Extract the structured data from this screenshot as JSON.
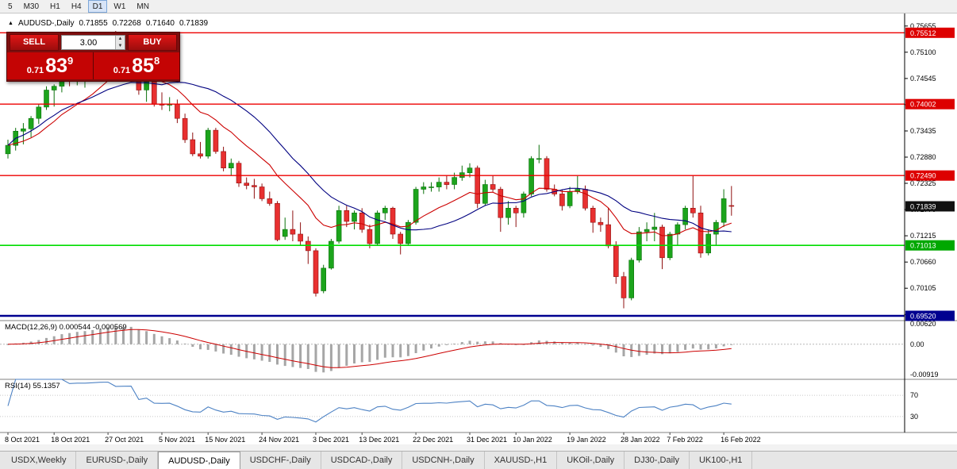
{
  "toolbar": {
    "periods": [
      {
        "label": "5",
        "active": false
      },
      {
        "label": "M30",
        "active": false
      },
      {
        "label": "H1",
        "active": false
      },
      {
        "label": "H4",
        "active": false
      },
      {
        "label": "D1",
        "active": true
      },
      {
        "label": "W1",
        "active": false
      },
      {
        "label": "MN",
        "active": false
      }
    ]
  },
  "chart": {
    "expand_icon": "▲",
    "symbol_label": "AUDUSD-,Daily",
    "open": "0.71855",
    "high": "0.72268",
    "low": "0.71640",
    "close": "0.71839"
  },
  "trade_panel": {
    "sell_label": "SELL",
    "buy_label": "BUY",
    "lot_value": "3.00",
    "spin_up_icon": "▲",
    "spin_down_icon": "▼",
    "sell_price": {
      "small": "0.71",
      "big": "83",
      "sup": "9"
    },
    "buy_price": {
      "small": "0.71",
      "big": "85",
      "sup": "8"
    }
  },
  "chart_data": {
    "type": "candlestick",
    "title": "AUDUSD-,Daily",
    "style": {
      "up_color": "#1ca41c",
      "up_border": "#0c720c",
      "down_color": "#e83030",
      "down_border": "#8f1010"
    },
    "price_axis": {
      "ticks": [
        "0.75655",
        "0.75100",
        "0.74545",
        "0.73990",
        "0.73435",
        "0.72880",
        "0.72325",
        "0.71770",
        "0.71215",
        "0.70660",
        "0.70105",
        "0.69550"
      ],
      "badges": [
        {
          "v": 0.75512,
          "label": "0.75512",
          "bg": "#dd0000"
        },
        {
          "v": 0.74002,
          "label": "0.74002",
          "bg": "#dd0000"
        },
        {
          "v": 0.7249,
          "label": "0.72490",
          "bg": "#dd0000"
        },
        {
          "v": 0.71839,
          "label": "0.71839",
          "bg": "#111111"
        },
        {
          "v": 0.71013,
          "label": "0.71013",
          "bg": "#00a800"
        },
        {
          "v": 0.6952,
          "label": "0.69520",
          "bg": "#000090"
        }
      ]
    },
    "hlines": [
      {
        "v": 0.75512,
        "color": "#ee0000",
        "w": 1.3
      },
      {
        "v": 0.74002,
        "color": "#ee0000",
        "w": 1.3
      },
      {
        "v": 0.7249,
        "color": "#ee0000",
        "w": 1.3
      },
      {
        "v": 0.71013,
        "color": "#00dd00",
        "w": 1.6
      },
      {
        "v": 0.6952,
        "color": "#000090",
        "w": 2.6
      }
    ],
    "mas": [
      {
        "type": "ema",
        "period": 13,
        "color": "#cc0000",
        "width": 1.1
      },
      {
        "type": "sma",
        "period": 21,
        "color": "#000080",
        "width": 1.1
      }
    ],
    "macd": {
      "label": "MACD(12,26,9)",
      "value_text": "0.000544 -0.000569",
      "fast": 12,
      "slow": 26,
      "signal": 9,
      "bar_color": "#a6a6a6",
      "signal_color": "#cc0000",
      "axis": [
        {
          "v": 0.0062,
          "label": "0.00620"
        },
        {
          "v": 0,
          "label": "0.00"
        },
        {
          "v": -0.00919,
          "label": "-0.00919"
        }
      ]
    },
    "rsi": {
      "label": "RSI(14)",
      "value_text": "55.1357",
      "period": 14,
      "line_color": "#4d82c4",
      "levels": [
        70,
        30
      ],
      "axis": [
        {
          "v": 70,
          "label": "70"
        },
        {
          "v": 30,
          "label": "30"
        }
      ]
    },
    "x_labels": [
      {
        "i": 0,
        "label": "8 Oct 2021"
      },
      {
        "i": 6,
        "label": "18 Oct 2021"
      },
      {
        "i": 13,
        "label": "27 Oct 2021"
      },
      {
        "i": 20,
        "label": "5 Nov 2021"
      },
      {
        "i": 26,
        "label": "15 Nov 2021"
      },
      {
        "i": 33,
        "label": "24 Nov 2021"
      },
      {
        "i": 40,
        "label": "3 Dec 2021"
      },
      {
        "i": 46,
        "label": "13 Dec 2021"
      },
      {
        "i": 53,
        "label": "22 Dec 2021"
      },
      {
        "i": 60,
        "label": "31 Dec 2021"
      },
      {
        "i": 66,
        "label": "10 Jan 2022"
      },
      {
        "i": 73,
        "label": "19 Jan 2022"
      },
      {
        "i": 80,
        "label": "28 Jan 2022"
      },
      {
        "i": 86,
        "label": "7 Feb 2022"
      },
      {
        "i": 93,
        "label": "16 Feb 2022"
      }
    ],
    "candles": [
      [
        0.7295,
        0.7325,
        0.7285,
        0.7313
      ],
      [
        0.7313,
        0.735,
        0.7302,
        0.7343
      ],
      [
        0.7343,
        0.736,
        0.7315,
        0.7348
      ],
      [
        0.7348,
        0.7375,
        0.733,
        0.737
      ],
      [
        0.737,
        0.74,
        0.7358,
        0.7394
      ],
      [
        0.7394,
        0.7438,
        0.7388,
        0.743
      ],
      [
        0.743,
        0.7442,
        0.7395,
        0.7438
      ],
      [
        0.7438,
        0.7475,
        0.7425,
        0.7465
      ],
      [
        0.7465,
        0.7478,
        0.7438,
        0.7452
      ],
      [
        0.7452,
        0.749,
        0.744,
        0.7468
      ],
      [
        0.7468,
        0.748,
        0.7435,
        0.747
      ],
      [
        0.747,
        0.7498,
        0.7448,
        0.749
      ],
      [
        0.749,
        0.753,
        0.748,
        0.752
      ],
      [
        0.752,
        0.755,
        0.7505,
        0.7535
      ],
      [
        0.7535,
        0.7555,
        0.751,
        0.7512
      ],
      [
        0.7512,
        0.754,
        0.749,
        0.7518
      ],
      [
        0.7518,
        0.7535,
        0.748,
        0.752
      ],
      [
        0.752,
        0.7528,
        0.742,
        0.743
      ],
      [
        0.743,
        0.746,
        0.7405,
        0.745
      ],
      [
        0.745,
        0.7458,
        0.7395,
        0.74
      ],
      [
        0.74,
        0.7425,
        0.7388,
        0.7398
      ],
      [
        0.7398,
        0.7415,
        0.7385,
        0.74
      ],
      [
        0.74,
        0.741,
        0.736,
        0.737
      ],
      [
        0.737,
        0.738,
        0.7318,
        0.7325
      ],
      [
        0.7325,
        0.734,
        0.729,
        0.7295
      ],
      [
        0.7295,
        0.732,
        0.7285,
        0.729
      ],
      [
        0.729,
        0.735,
        0.7285,
        0.7345
      ],
      [
        0.7345,
        0.735,
        0.7295,
        0.73
      ],
      [
        0.73,
        0.731,
        0.7258,
        0.7265
      ],
      [
        0.7265,
        0.7285,
        0.725,
        0.7275
      ],
      [
        0.7275,
        0.728,
        0.7225,
        0.7233
      ],
      [
        0.7233,
        0.7245,
        0.722,
        0.7228
      ],
      [
        0.7228,
        0.7242,
        0.72,
        0.7225
      ],
      [
        0.7225,
        0.7232,
        0.7195,
        0.72
      ],
      [
        0.72,
        0.7215,
        0.7185,
        0.719
      ],
      [
        0.719,
        0.7195,
        0.711,
        0.7113
      ],
      [
        0.712,
        0.716,
        0.7113,
        0.7135
      ],
      [
        0.7135,
        0.7175,
        0.711,
        0.7125
      ],
      [
        0.7125,
        0.715,
        0.71,
        0.711
      ],
      [
        0.711,
        0.712,
        0.7062,
        0.709
      ],
      [
        0.709,
        0.7095,
        0.6993,
        0.7
      ],
      [
        0.7005,
        0.706,
        0.7,
        0.7053
      ],
      [
        0.7053,
        0.7115,
        0.705,
        0.711
      ],
      [
        0.711,
        0.7185,
        0.7105,
        0.7175
      ],
      [
        0.7175,
        0.7185,
        0.714,
        0.7152
      ],
      [
        0.7152,
        0.7175,
        0.7135,
        0.717
      ],
      [
        0.717,
        0.718,
        0.7128,
        0.7135
      ],
      [
        0.7135,
        0.7145,
        0.7095,
        0.7105
      ],
      [
        0.7105,
        0.7175,
        0.71,
        0.717
      ],
      [
        0.717,
        0.7185,
        0.7155,
        0.718
      ],
      [
        0.718,
        0.7183,
        0.7115,
        0.7125
      ],
      [
        0.7125,
        0.713,
        0.7082,
        0.7105
      ],
      [
        0.7105,
        0.7155,
        0.71,
        0.715
      ],
      [
        0.715,
        0.7225,
        0.7145,
        0.722
      ],
      [
        0.722,
        0.7235,
        0.721,
        0.7225
      ],
      [
        0.7225,
        0.7235,
        0.7215,
        0.7225
      ],
      [
        0.7225,
        0.7245,
        0.7215,
        0.7235
      ],
      [
        0.7235,
        0.725,
        0.722,
        0.723
      ],
      [
        0.723,
        0.7255,
        0.722,
        0.7245
      ],
      [
        0.7245,
        0.727,
        0.7238,
        0.7255
      ],
      [
        0.7255,
        0.7275,
        0.7245,
        0.7265
      ],
      [
        0.7265,
        0.727,
        0.718,
        0.719
      ],
      [
        0.719,
        0.724,
        0.7185,
        0.723
      ],
      [
        0.723,
        0.725,
        0.7215,
        0.722
      ],
      [
        0.722,
        0.7225,
        0.713,
        0.716
      ],
      [
        0.716,
        0.7195,
        0.7145,
        0.718
      ],
      [
        0.718,
        0.7185,
        0.714,
        0.717
      ],
      [
        0.717,
        0.7215,
        0.716,
        0.721
      ],
      [
        0.721,
        0.729,
        0.7205,
        0.7285
      ],
      [
        0.7285,
        0.7314,
        0.7275,
        0.7285
      ],
      [
        0.7285,
        0.729,
        0.7215,
        0.722
      ],
      [
        0.722,
        0.723,
        0.7205,
        0.721
      ],
      [
        0.721,
        0.722,
        0.7175,
        0.7185
      ],
      [
        0.7185,
        0.7225,
        0.718,
        0.7215
      ],
      [
        0.7215,
        0.7248,
        0.721,
        0.722
      ],
      [
        0.722,
        0.7228,
        0.7175,
        0.718
      ],
      [
        0.718,
        0.7185,
        0.7128,
        0.715
      ],
      [
        0.715,
        0.716,
        0.713,
        0.7145
      ],
      [
        0.7145,
        0.718,
        0.7095,
        0.71
      ],
      [
        0.71,
        0.711,
        0.702,
        0.7035
      ],
      [
        0.7035,
        0.7045,
        0.6968,
        0.699
      ],
      [
        0.699,
        0.7075,
        0.6985,
        0.707
      ],
      [
        0.707,
        0.714,
        0.7065,
        0.713
      ],
      [
        0.713,
        0.715,
        0.711,
        0.7135
      ],
      [
        0.7135,
        0.717,
        0.711,
        0.714
      ],
      [
        0.714,
        0.7145,
        0.7051,
        0.7075
      ],
      [
        0.7075,
        0.713,
        0.707,
        0.7125
      ],
      [
        0.7125,
        0.715,
        0.71,
        0.7145
      ],
      [
        0.7145,
        0.7185,
        0.7135,
        0.718
      ],
      [
        0.718,
        0.7249,
        0.716,
        0.717
      ],
      [
        0.717,
        0.7185,
        0.7075,
        0.7085
      ],
      [
        0.7085,
        0.7135,
        0.708,
        0.7125
      ],
      [
        0.7125,
        0.7155,
        0.71,
        0.715
      ],
      [
        0.715,
        0.722,
        0.714,
        0.72
      ],
      [
        0.71855,
        0.72268,
        0.7164,
        0.71839
      ]
    ]
  },
  "tabs": {
    "items": [
      {
        "label": "USDX,Weekly",
        "active": false
      },
      {
        "label": "EURUSD-,Daily",
        "active": false
      },
      {
        "label": "AUDUSD-,Daily",
        "active": true
      },
      {
        "label": "USDCHF-,Daily",
        "active": false
      },
      {
        "label": "USDCAD-,Daily",
        "active": false
      },
      {
        "label": "USDCNH-,Daily",
        "active": false
      },
      {
        "label": "XAUUSD-,H1",
        "active": false
      },
      {
        "label": "UKOil-,Daily",
        "active": false
      },
      {
        "label": "DJ30-,Daily",
        "active": false
      },
      {
        "label": "UK100-,H1",
        "active": false
      }
    ]
  }
}
